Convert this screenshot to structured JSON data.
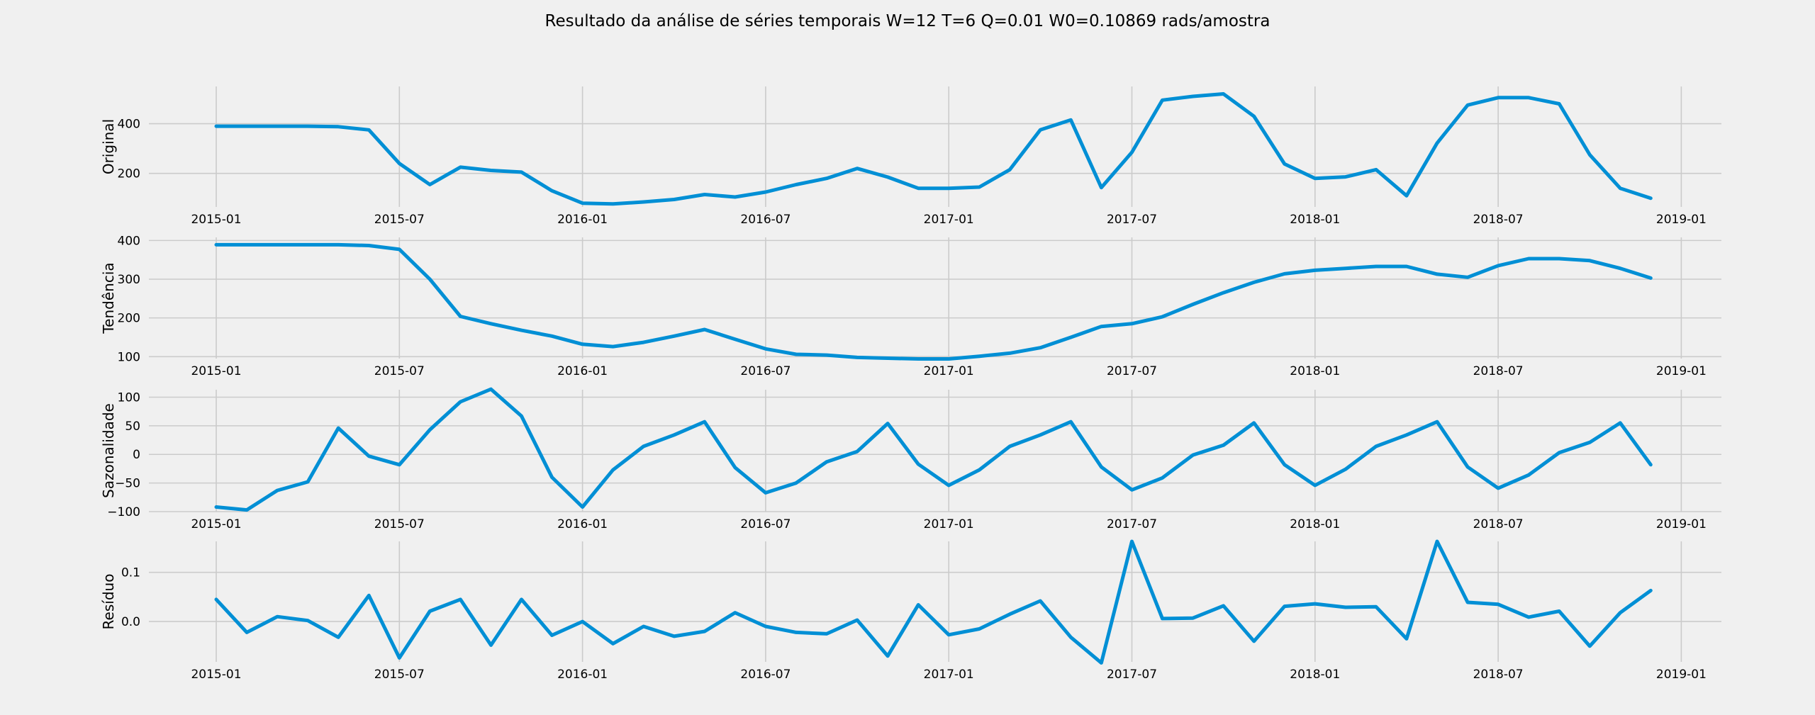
{
  "figure": {
    "title": "Resultado da análise de séries temporais W=12 T=6 Q=0.01 W0=0.10869 rads/amostra"
  },
  "colors": {
    "background": "#f0f0f0",
    "line": "#008fd5",
    "grid": "#cbcbcb"
  },
  "chart_data": {
    "type": "line",
    "x_tick_labels": [
      "2015-01",
      "2015-07",
      "2016-01",
      "2016-07",
      "2017-01",
      "2017-07",
      "2018-01",
      "2018-07",
      "2019-01"
    ],
    "x": [
      "2015-01",
      "2015-02",
      "2015-03",
      "2015-04",
      "2015-05",
      "2015-06",
      "2015-07",
      "2015-08",
      "2015-09",
      "2015-10",
      "2015-11",
      "2015-12",
      "2016-01",
      "2016-02",
      "2016-03",
      "2016-04",
      "2016-05",
      "2016-06",
      "2016-07",
      "2016-08",
      "2016-09",
      "2016-10",
      "2016-11",
      "2016-12",
      "2017-01",
      "2017-02",
      "2017-03",
      "2017-04",
      "2017-05",
      "2017-06",
      "2017-07",
      "2017-08",
      "2017-09",
      "2017-10",
      "2017-11",
      "2017-12",
      "2018-01",
      "2018-02",
      "2018-03",
      "2018-04",
      "2018-05",
      "2018-06",
      "2018-07",
      "2018-08",
      "2018-09",
      "2018-10",
      "2018-11",
      "2018-12"
    ],
    "panels": [
      {
        "ylabel": "Original",
        "yticks": [
          200,
          400
        ],
        "ylim": [
          65,
          550
        ],
        "values": [
          390,
          390,
          390,
          390,
          388,
          375,
          240,
          155,
          225,
          212,
          205,
          130,
          80,
          77,
          85,
          95,
          115,
          105,
          125,
          155,
          180,
          220,
          185,
          140,
          140,
          145,
          215,
          375,
          415,
          143,
          285,
          495,
          510,
          520,
          430,
          238,
          180,
          186,
          215,
          110,
          322,
          475,
          505,
          505,
          480,
          275,
          140,
          100
        ]
      },
      {
        "ylabel": "Tendência",
        "yticks": [
          100,
          200,
          300,
          400
        ],
        "ylim": [
          95,
          408
        ],
        "values": [
          389,
          389,
          389,
          389,
          389,
          387,
          377,
          300,
          204,
          185,
          168,
          153,
          132,
          126,
          137,
          153,
          170,
          145,
          120,
          106,
          104,
          98,
          96,
          94,
          94,
          101,
          109,
          123,
          150,
          178,
          185,
          203,
          235,
          265,
          292,
          314,
          323,
          328,
          333,
          333,
          313,
          305,
          335,
          353,
          353,
          348,
          328,
          303
        ]
      },
      {
        "ylabel": "Sazonalidade",
        "yticks": [
          -100,
          -50,
          0,
          50,
          100
        ],
        "ylim": [
          -100,
          113
        ],
        "values": [
          -92,
          -97,
          -63,
          -48,
          46,
          -3,
          -18,
          43,
          92,
          114,
          67,
          -40,
          -92,
          -27,
          14,
          34,
          57,
          -23,
          -67,
          -50,
          -13,
          5,
          54,
          -17,
          -54,
          -27,
          14,
          34,
          57,
          -22,
          -62,
          -41,
          -1,
          16,
          55,
          -18,
          -54,
          -26,
          14,
          34,
          57,
          -22,
          -59,
          -36,
          3,
          21,
          55,
          -18
        ]
      },
      {
        "ylabel": "Resíduo",
        "yticks": [
          0.0,
          0.1
        ],
        "ylim": [
          -0.082,
          0.163
        ],
        "values": [
          0.045,
          -0.022,
          0.01,
          0.002,
          -0.032,
          0.053,
          -0.074,
          0.021,
          0.045,
          -0.048,
          0.045,
          -0.028,
          0.0,
          -0.045,
          -0.01,
          -0.03,
          -0.02,
          0.018,
          -0.01,
          -0.022,
          -0.025,
          0.003,
          -0.07,
          0.034,
          -0.027,
          -0.015,
          0.015,
          0.042,
          -0.032,
          -0.084,
          0.163,
          0.006,
          0.007,
          0.032,
          -0.04,
          0.031,
          0.036,
          0.029,
          0.03,
          -0.035,
          0.163,
          0.039,
          0.035,
          0.009,
          0.021,
          -0.05,
          0.018,
          0.063
        ]
      }
    ]
  }
}
